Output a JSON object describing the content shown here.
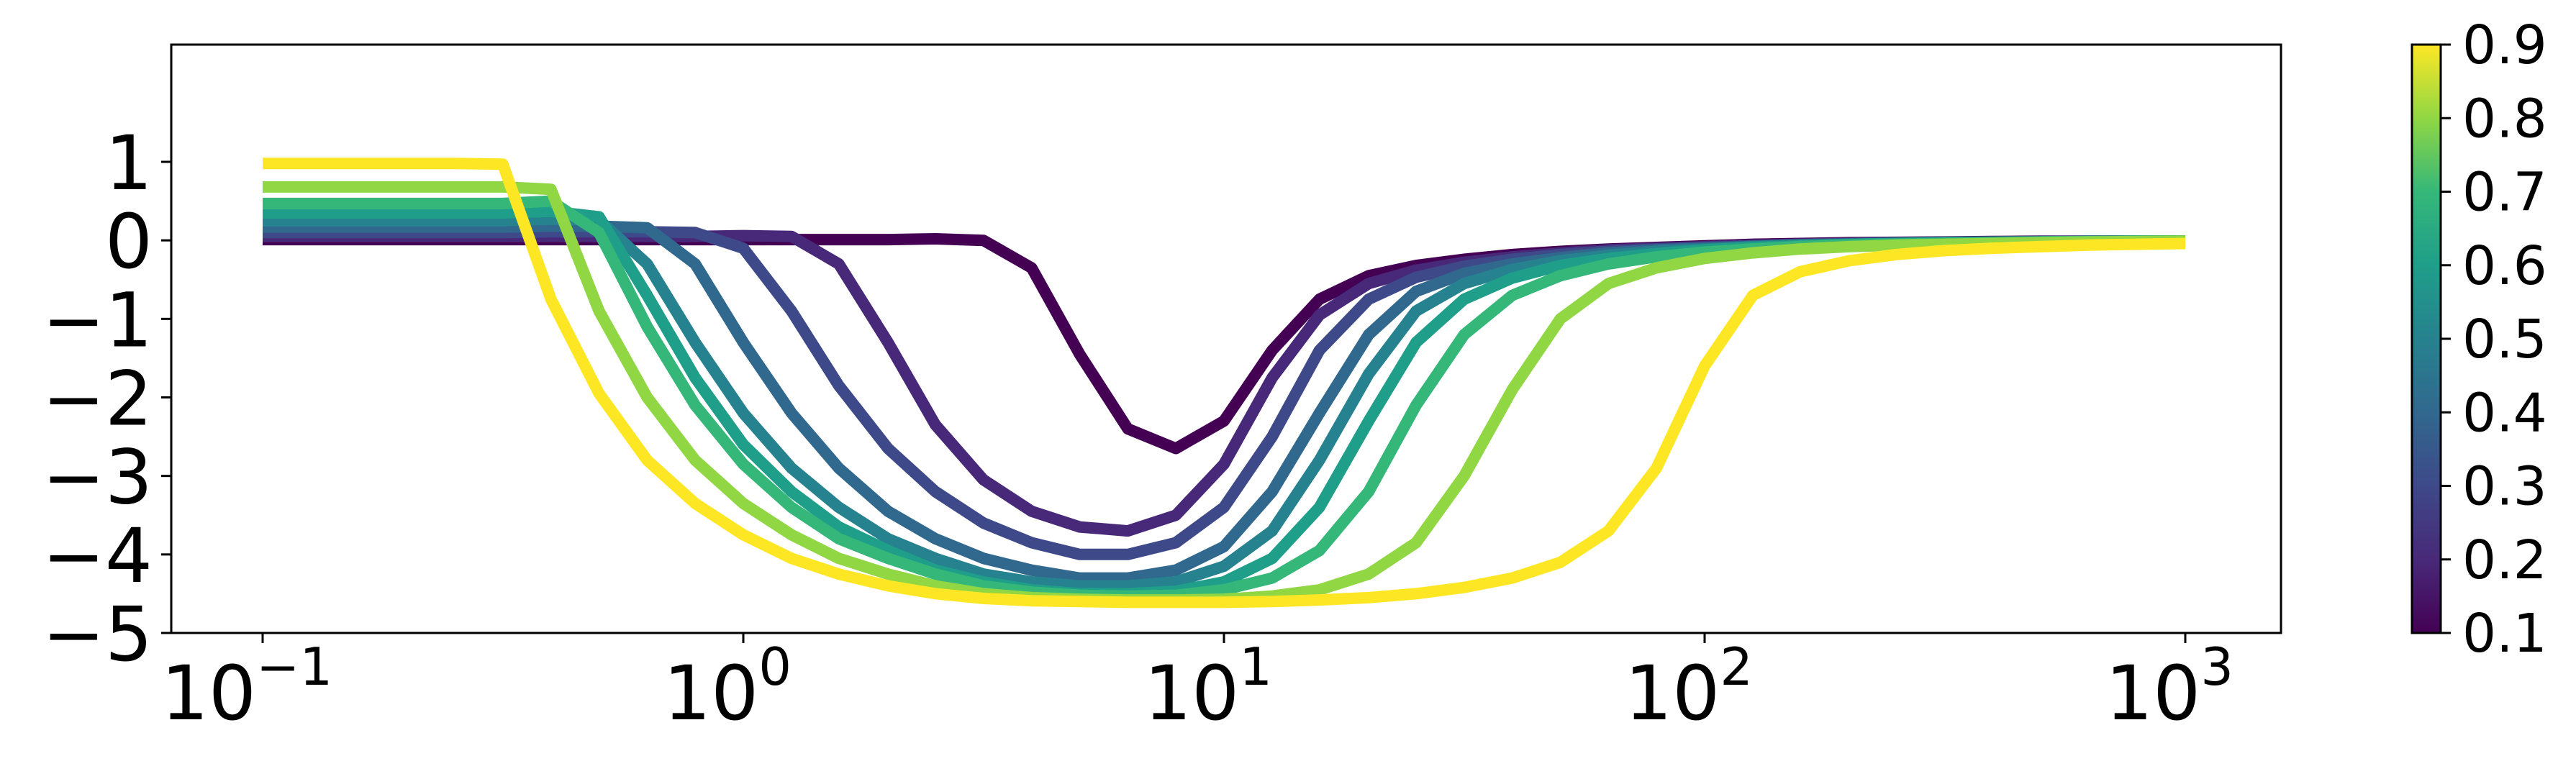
{
  "chart_data": {
    "type": "line",
    "title": "",
    "xlabel": "",
    "ylabel": "",
    "xscale": "log",
    "xlim": [
      0.1,
      1000
    ],
    "ylim": [
      -5,
      1.2
    ],
    "grid": false,
    "legend": "none",
    "x_ticks": [
      {
        "value": 0.1,
        "base": "10",
        "exp": "−1"
      },
      {
        "value": 1,
        "base": "10",
        "exp": "0"
      },
      {
        "value": 10,
        "base": "10",
        "exp": "1"
      },
      {
        "value": 100,
        "base": "10",
        "exp": "2"
      },
      {
        "value": 1000,
        "base": "10",
        "exp": "3"
      }
    ],
    "y_ticks": [
      {
        "value": 1,
        "label": "1"
      },
      {
        "value": 0,
        "label": "0"
      },
      {
        "value": -1,
        "label": "−1"
      },
      {
        "value": -2,
        "label": "−2"
      },
      {
        "value": -3,
        "label": "−3"
      },
      {
        "value": -4,
        "label": "−4"
      },
      {
        "value": -5,
        "label": "−5"
      }
    ],
    "colorbar": {
      "colormap": "viridis",
      "range": [
        0.1,
        0.9
      ],
      "ticks": [
        "0.1",
        "0.2",
        "0.3",
        "0.4",
        "0.5",
        "0.6",
        "0.7",
        "0.8",
        "0.9"
      ]
    },
    "x": [
      0.1,
      0.126,
      0.158,
      0.2,
      0.251,
      0.316,
      0.398,
      0.501,
      0.631,
      0.794,
      1,
      1.26,
      1.58,
      2,
      2.51,
      3.16,
      3.98,
      5.01,
      6.31,
      7.94,
      10,
      12.6,
      15.8,
      20,
      25.1,
      31.6,
      39.8,
      50.1,
      63.1,
      79.4,
      100,
      126,
      158,
      200,
      251,
      316,
      398,
      501,
      631,
      794,
      1000
    ],
    "series": [
      {
        "param": 0.1,
        "color": "#440154",
        "values": [
          0.01,
          0.01,
          0.01,
          0.01,
          0.01,
          0.01,
          0.01,
          0.01,
          0.01,
          0.01,
          0.01,
          0.01,
          0.01,
          0.01,
          0.02,
          0.0,
          -0.35,
          -1.45,
          -2.4,
          -2.65,
          -2.3,
          -1.4,
          -0.75,
          -0.45,
          -0.32,
          -0.24,
          -0.18,
          -0.14,
          -0.11,
          -0.09,
          -0.07,
          -0.05,
          -0.04,
          -0.03,
          -0.025,
          -0.02,
          -0.015,
          -0.01,
          -0.01,
          -0.01,
          -0.01
        ]
      },
      {
        "param": 0.2,
        "color": "#482979",
        "values": [
          0.05,
          0.05,
          0.05,
          0.05,
          0.05,
          0.05,
          0.05,
          0.05,
          0.05,
          0.05,
          0.06,
          0.05,
          -0.3,
          -1.3,
          -2.35,
          -3.05,
          -3.45,
          -3.65,
          -3.7,
          -3.5,
          -2.85,
          -1.75,
          -0.95,
          -0.55,
          -0.38,
          -0.28,
          -0.21,
          -0.16,
          -0.12,
          -0.1,
          -0.08,
          -0.06,
          -0.05,
          -0.04,
          -0.03,
          -0.025,
          -0.02,
          -0.015,
          -0.01,
          -0.01,
          -0.01
        ]
      },
      {
        "param": 0.3,
        "color": "#3e4989",
        "values": [
          0.1,
          0.1,
          0.1,
          0.1,
          0.1,
          0.1,
          0.11,
          0.11,
          0.11,
          0.1,
          -0.1,
          -0.9,
          -1.85,
          -2.65,
          -3.2,
          -3.6,
          -3.85,
          -4.0,
          -4.0,
          -3.85,
          -3.4,
          -2.5,
          -1.4,
          -0.75,
          -0.47,
          -0.33,
          -0.24,
          -0.18,
          -0.14,
          -0.11,
          -0.09,
          -0.07,
          -0.05,
          -0.04,
          -0.03,
          -0.025,
          -0.02,
          -0.015,
          -0.01,
          -0.01,
          -0.01
        ]
      },
      {
        "param": 0.4,
        "color": "#31688e",
        "values": [
          0.17,
          0.17,
          0.17,
          0.17,
          0.17,
          0.17,
          0.18,
          0.18,
          0.16,
          -0.3,
          -1.3,
          -2.2,
          -2.9,
          -3.45,
          -3.8,
          -4.05,
          -4.2,
          -4.3,
          -4.3,
          -4.2,
          -3.9,
          -3.2,
          -2.2,
          -1.2,
          -0.65,
          -0.42,
          -0.3,
          -0.22,
          -0.16,
          -0.12,
          -0.1,
          -0.08,
          -0.06,
          -0.05,
          -0.04,
          -0.03,
          -0.025,
          -0.02,
          -0.015,
          -0.01,
          -0.01
        ]
      },
      {
        "param": 0.5,
        "color": "#26828e",
        "values": [
          0.25,
          0.25,
          0.25,
          0.25,
          0.25,
          0.25,
          0.27,
          0.26,
          -0.3,
          -1.3,
          -2.2,
          -2.9,
          -3.4,
          -3.8,
          -4.05,
          -4.25,
          -4.35,
          -4.4,
          -4.4,
          -4.35,
          -4.15,
          -3.7,
          -2.8,
          -1.7,
          -0.9,
          -0.55,
          -0.37,
          -0.26,
          -0.19,
          -0.14,
          -0.11,
          -0.08,
          -0.06,
          -0.05,
          -0.04,
          -0.03,
          -0.025,
          -0.02,
          -0.015,
          -0.01,
          -0.01
        ]
      },
      {
        "param": 0.6,
        "color": "#1f9e89",
        "values": [
          0.35,
          0.35,
          0.35,
          0.35,
          0.35,
          0.35,
          0.37,
          0.3,
          -0.7,
          -1.75,
          -2.6,
          -3.2,
          -3.65,
          -3.95,
          -4.2,
          -4.35,
          -4.45,
          -4.5,
          -4.5,
          -4.47,
          -4.35,
          -4.05,
          -3.4,
          -2.3,
          -1.3,
          -0.75,
          -0.48,
          -0.32,
          -0.23,
          -0.17,
          -0.12,
          -0.09,
          -0.07,
          -0.05,
          -0.04,
          -0.03,
          -0.025,
          -0.02,
          -0.015,
          -0.01,
          -0.01
        ]
      },
      {
        "param": 0.7,
        "color": "#35b779",
        "values": [
          0.47,
          0.47,
          0.47,
          0.47,
          0.47,
          0.47,
          0.5,
          0.1,
          -1.1,
          -2.1,
          -2.85,
          -3.4,
          -3.8,
          -4.05,
          -4.25,
          -4.4,
          -4.48,
          -4.52,
          -4.53,
          -4.52,
          -4.45,
          -4.3,
          -3.95,
          -3.2,
          -2.1,
          -1.2,
          -0.7,
          -0.45,
          -0.3,
          -0.21,
          -0.15,
          -0.11,
          -0.08,
          -0.06,
          -0.05,
          -0.04,
          -0.03,
          -0.02,
          -0.015,
          -0.01,
          -0.01
        ]
      },
      {
        "param": 0.8,
        "color": "#90d743",
        "values": [
          0.68,
          0.68,
          0.68,
          0.68,
          0.68,
          0.68,
          0.65,
          -0.9,
          -2.0,
          -2.8,
          -3.35,
          -3.75,
          -4.05,
          -4.25,
          -4.4,
          -4.5,
          -4.55,
          -4.57,
          -4.58,
          -4.58,
          -4.57,
          -4.53,
          -4.45,
          -4.25,
          -3.85,
          -3.0,
          -1.9,
          -1.0,
          -0.55,
          -0.35,
          -0.23,
          -0.16,
          -0.11,
          -0.08,
          -0.06,
          -0.05,
          -0.04,
          -0.03,
          -0.02,
          -0.015,
          -0.01
        ]
      },
      {
        "param": 0.9,
        "color": "#fde725",
        "values": [
          0.98,
          0.98,
          0.98,
          0.98,
          0.98,
          0.97,
          -0.75,
          -1.95,
          -2.8,
          -3.35,
          -3.75,
          -4.05,
          -4.25,
          -4.4,
          -4.5,
          -4.56,
          -4.59,
          -4.6,
          -4.61,
          -4.61,
          -4.61,
          -4.6,
          -4.58,
          -4.55,
          -4.5,
          -4.42,
          -4.3,
          -4.1,
          -3.7,
          -2.9,
          -1.6,
          -0.7,
          -0.4,
          -0.26,
          -0.18,
          -0.13,
          -0.1,
          -0.08,
          -0.06,
          -0.05,
          -0.04
        ]
      }
    ]
  }
}
